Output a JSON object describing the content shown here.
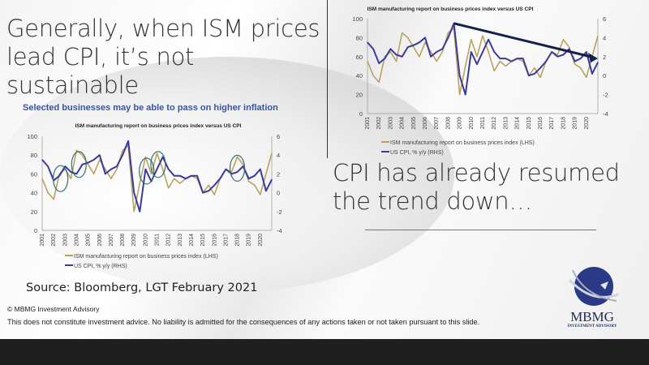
{
  "slide": {
    "title": "Generally, when ISM prices lead CPI, it’s not sustainable",
    "right_text": "CPI has already resumed the trend down…",
    "left_heading": "Selected businesses may be able to pass on higher inflation",
    "source": "Source: Bloomberg, LGT February 2021",
    "copyright": "© MBMG Investment Advisory",
    "disclaimer": "This does not constitute investment advice. No liability is admitted for the consequences of any actions taken or not taken pursuant to this slide.",
    "logo_text": "MBMG",
    "logo_sub": "INVESTMENT ADVISORY"
  },
  "colors": {
    "ism": "#b8a261",
    "cpi": "#3a3a9a",
    "arrow": "#15204a",
    "heading": "#3a55a0",
    "ellipse": "#2f6f6f"
  },
  "chart_data": [
    {
      "id": "left",
      "type": "line",
      "title": "ISM manufacturing report on business prices index versus US CPI",
      "xlabel": "",
      "ylabel": "",
      "y2label": "",
      "ylim": [
        0,
        100
      ],
      "y2lim": [
        -4,
        6
      ],
      "yticks": [
        "0",
        "20",
        "40",
        "60",
        "80",
        "100"
      ],
      "y2ticks": [
        "-4",
        "-2",
        "0",
        "2",
        "4",
        "6"
      ],
      "xticks": [
        "2001",
        "2002",
        "2003",
        "2004",
        "2005",
        "2006",
        "2007",
        "2008",
        "2009",
        "2010",
        "2011",
        "2012",
        "2013",
        "2014",
        "2015",
        "2016",
        "2017",
        "2018",
        "2019",
        "2020"
      ],
      "xlim": [
        2001,
        2021
      ],
      "legend": [
        "ISM manufacturing report on business prices index (LHS)",
        "US CPI, % y/y (RHS)"
      ],
      "legend_position": "bottom",
      "annotations": {
        "ellipses_at": [
          [
            2002.6,
            55
          ],
          [
            2004.2,
            70
          ],
          [
            2010.1,
            63
          ],
          [
            2011.1,
            70
          ],
          [
            2018.0,
            66
          ]
        ]
      },
      "series": [
        {
          "name": "ISM prices index (LHS)",
          "axis": "left",
          "x": [
            2001,
            2001.5,
            2002,
            2002.5,
            2003,
            2003.5,
            2004,
            2004.5,
            2005,
            2005.5,
            2006,
            2006.5,
            2007,
            2007.5,
            2008,
            2008.5,
            2009,
            2009.5,
            2010,
            2010.5,
            2011,
            2011.5,
            2012,
            2012.5,
            2013,
            2013.5,
            2014,
            2014.5,
            2015,
            2015.5,
            2016,
            2016.5,
            2017,
            2017.5,
            2018,
            2018.5,
            2019,
            2019.5,
            2020,
            2020.5,
            2021
          ],
          "values": [
            55,
            40,
            33,
            60,
            65,
            55,
            85,
            80,
            70,
            60,
            75,
            65,
            55,
            65,
            85,
            90,
            20,
            50,
            78,
            60,
            82,
            65,
            45,
            55,
            50,
            55,
            58,
            55,
            40,
            48,
            38,
            55,
            65,
            62,
            78,
            70,
            52,
            48,
            38,
            60,
            82
          ]
        },
        {
          "name": "US CPI, % y/y (RHS)",
          "axis": "right",
          "x": [
            2001,
            2001.5,
            2002,
            2002.5,
            2003,
            2003.5,
            2004,
            2004.5,
            2005,
            2005.5,
            2006,
            2006.5,
            2007,
            2007.5,
            2008,
            2008.5,
            2009,
            2009.5,
            2010,
            2010.5,
            2011,
            2011.5,
            2012,
            2012.5,
            2013,
            2013.5,
            2014,
            2014.5,
            2015,
            2015.5,
            2016,
            2016.5,
            2017,
            2017.5,
            2018,
            2018.5,
            2019,
            2019.5,
            2020,
            2020.5,
            2021
          ],
          "values": [
            3.5,
            2.8,
            1.3,
            1.8,
            2.8,
            2.2,
            2.0,
            3.0,
            3.2,
            3.5,
            4.0,
            2.0,
            2.5,
            2.8,
            4.0,
            5.5,
            0,
            -2.0,
            2.5,
            1.2,
            2.5,
            3.8,
            2.5,
            1.8,
            1.8,
            1.5,
            1.8,
            1.8,
            0,
            0.2,
            0.8,
            1.5,
            2.5,
            2.0,
            2.2,
            2.8,
            1.5,
            1.8,
            2.5,
            0.2,
            1.4
          ]
        }
      ]
    },
    {
      "id": "right",
      "type": "line",
      "title": "ISM manufacturing report on business prices index versus US CPI",
      "xlabel": "",
      "ylabel": "",
      "y2label": "",
      "ylim": [
        0,
        100
      ],
      "y2lim": [
        -4,
        6
      ],
      "yticks": [
        "0",
        "20",
        "40",
        "60",
        "80",
        "100"
      ],
      "y2ticks": [
        "-4",
        "-2",
        "0",
        "2",
        "4",
        "6"
      ],
      "xticks": [
        "2001",
        "2002",
        "2003",
        "2004",
        "2005",
        "2006",
        "2007",
        "2008",
        "2009",
        "2010",
        "2011",
        "2012",
        "2013",
        "2014",
        "2015",
        "2016",
        "2017",
        "2018",
        "2019",
        "2020"
      ],
      "xlim": [
        2001,
        2021
      ],
      "legend": [
        "ISM manufacturing report on business prices index (LHS)",
        "US CPI, % y/y (RHS)"
      ],
      "legend_position": "bottom",
      "annotations": {
        "trend_arrow": {
          "from": [
            2008.5,
            5.5
          ],
          "to": [
            2021,
            1.8
          ],
          "axis": "right"
        }
      },
      "series": [
        {
          "name": "ISM prices index (LHS)",
          "axis": "left",
          "x": [
            2001,
            2001.5,
            2002,
            2002.5,
            2003,
            2003.5,
            2004,
            2004.5,
            2005,
            2005.5,
            2006,
            2006.5,
            2007,
            2007.5,
            2008,
            2008.5,
            2009,
            2009.5,
            2010,
            2010.5,
            2011,
            2011.5,
            2012,
            2012.5,
            2013,
            2013.5,
            2014,
            2014.5,
            2015,
            2015.5,
            2016,
            2016.5,
            2017,
            2017.5,
            2018,
            2018.5,
            2019,
            2019.5,
            2020,
            2020.5,
            2021
          ],
          "values": [
            55,
            40,
            33,
            60,
            65,
            55,
            85,
            80,
            70,
            60,
            75,
            65,
            55,
            65,
            85,
            90,
            20,
            50,
            78,
            60,
            82,
            65,
            45,
            55,
            50,
            55,
            58,
            55,
            40,
            48,
            38,
            55,
            65,
            62,
            78,
            70,
            52,
            48,
            38,
            60,
            82
          ]
        },
        {
          "name": "US CPI, % y/y (RHS)",
          "axis": "right",
          "x": [
            2001,
            2001.5,
            2002,
            2002.5,
            2003,
            2003.5,
            2004,
            2004.5,
            2005,
            2005.5,
            2006,
            2006.5,
            2007,
            2007.5,
            2008,
            2008.5,
            2009,
            2009.5,
            2010,
            2010.5,
            2011,
            2011.5,
            2012,
            2012.5,
            2013,
            2013.5,
            2014,
            2014.5,
            2015,
            2015.5,
            2016,
            2016.5,
            2017,
            2017.5,
            2018,
            2018.5,
            2019,
            2019.5,
            2020,
            2020.5,
            2021
          ],
          "values": [
            3.5,
            2.8,
            1.3,
            1.8,
            2.8,
            2.2,
            2.0,
            3.0,
            3.2,
            3.5,
            4.0,
            2.0,
            2.5,
            2.8,
            4.0,
            5.5,
            0,
            -2.0,
            2.5,
            1.2,
            2.5,
            3.8,
            2.5,
            1.8,
            1.8,
            1.5,
            1.8,
            1.8,
            0,
            0.2,
            0.8,
            1.5,
            2.5,
            2.0,
            2.2,
            2.8,
            1.5,
            1.8,
            2.5,
            0.2,
            1.4
          ]
        }
      ]
    }
  ]
}
